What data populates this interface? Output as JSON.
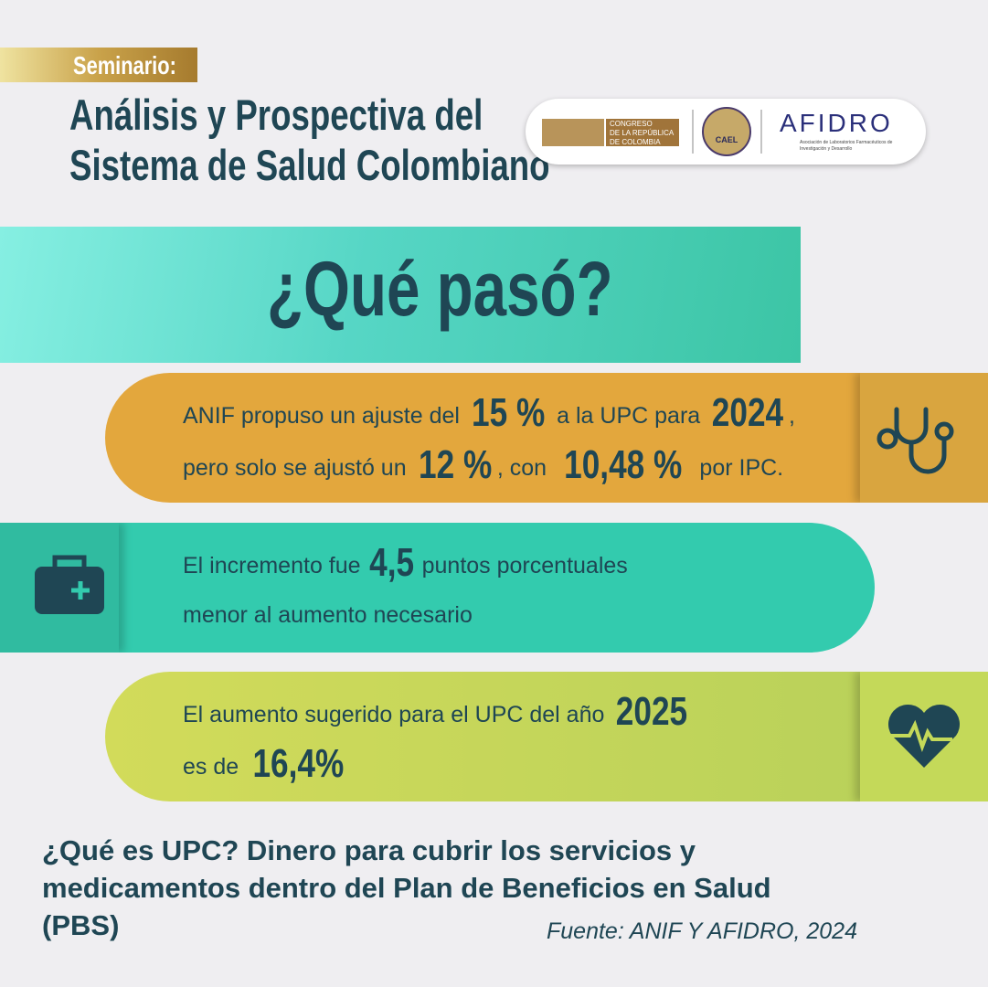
{
  "header": {
    "tag": "Seminario:",
    "title_lines": [
      "Análisis y Prospectiva del",
      "Sistema de Salud Colombiano"
    ]
  },
  "logos": {
    "congreso": [
      "CONGRESO",
      "DE LA REPÚBLICA",
      "DE COLOMBIA"
    ],
    "cael": "CAEL",
    "afidro": "AFIDRO",
    "afidro_sub": [
      "Asociación de Laboratorios Farmacéuticos de",
      "Investigación y Desarrollo"
    ]
  },
  "heading": "¿Qué pasó?",
  "banners": [
    {
      "lines": [
        [
          {
            "text": "ANIF propuso un ajuste del "
          },
          {
            "text": "15 %",
            "strong": true
          },
          {
            "text": " a la UPC para "
          },
          {
            "text": "2024",
            "strong": true
          },
          {
            "text": ","
          }
        ],
        [
          {
            "text": "pero solo se ajustó un "
          },
          {
            "text": "12 %",
            "strong": true
          },
          {
            "text": ", con "
          },
          {
            "text": "10,48 %",
            "strong": true
          },
          {
            "text": " por IPC."
          }
        ]
      ]
    },
    {
      "lines": [
        [
          {
            "text": "El incremento fue "
          },
          {
            "text": "4,5",
            "strong": true
          },
          {
            "text": " puntos porcentuales"
          }
        ],
        [
          {
            "text": "menor al aumento necesario"
          }
        ]
      ]
    },
    {
      "lines": [
        [
          {
            "text": "El aumento sugerido para el UPC del año "
          },
          {
            "text": "2025",
            "strong": true
          }
        ],
        [
          {
            "text": "es de "
          },
          {
            "text": "16,4%",
            "strong": true
          }
        ]
      ]
    }
  ],
  "footer": {
    "note": "¿Qué es UPC? Dinero para cubrir los servicios y medicamentos dentro del Plan de Beneficios en Salud (PBS)",
    "source": "Fuente: ANIF Y AFIDRO, 2024"
  }
}
